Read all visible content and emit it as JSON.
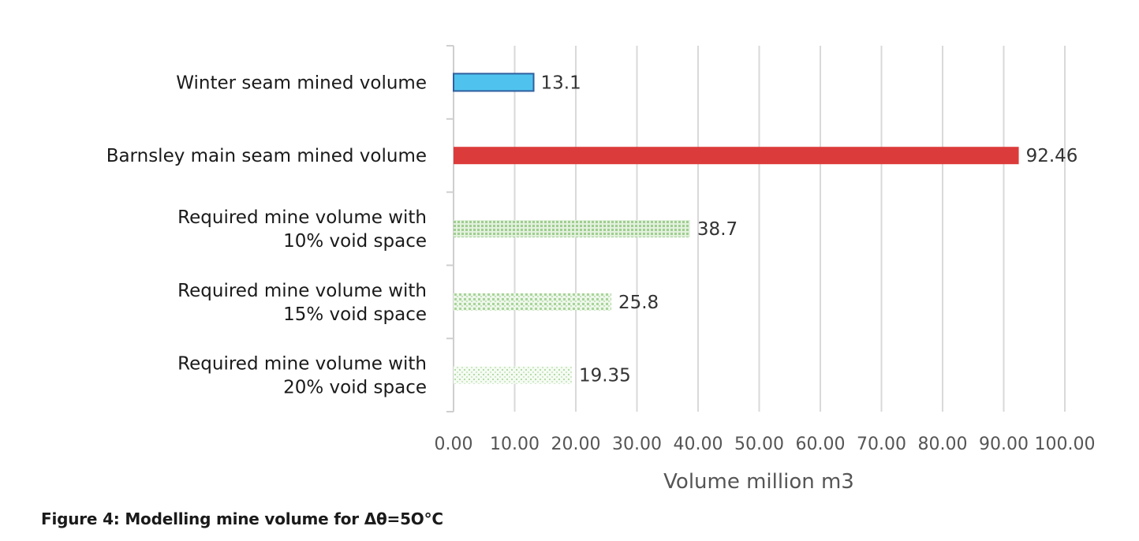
{
  "chart_data": {
    "type": "bar",
    "orientation": "horizontal",
    "categories": [
      [
        "Winter seam mined volume"
      ],
      [
        "Barnsley main seam mined volume"
      ],
      [
        "Required mine volume with",
        "10% void space"
      ],
      [
        "Required mine volume with",
        "15% void space"
      ],
      [
        "Required mine volume with",
        "20% void space"
      ]
    ],
    "values": [
      13.1,
      92.46,
      38.7,
      25.8,
      19.35
    ],
    "data_labels": [
      "13.1",
      "92.46",
      "38.7",
      "25.8",
      "19.35"
    ],
    "bar_colors": [
      "#4fc3ee",
      "#dc3b3b",
      "#a8d49a",
      "#a8d49a",
      "#a8d49a"
    ],
    "bar_patterns": [
      "solid",
      "solid",
      "dense-dots",
      "medium-dots",
      "sparse-dots"
    ],
    "xlim": [
      0,
      100
    ],
    "x_ticks": [
      "0.00",
      "10.00",
      "20.00",
      "30.00",
      "40.00",
      "50.00",
      "60.00",
      "70.00",
      "80.00",
      "90.00",
      "100.00"
    ],
    "xlabel": "Volume million m3",
    "ylabel": "",
    "grid": "vertical",
    "legend": "none"
  },
  "caption": "Figure 4: Modelling mine volume for Δθ=5O°C"
}
